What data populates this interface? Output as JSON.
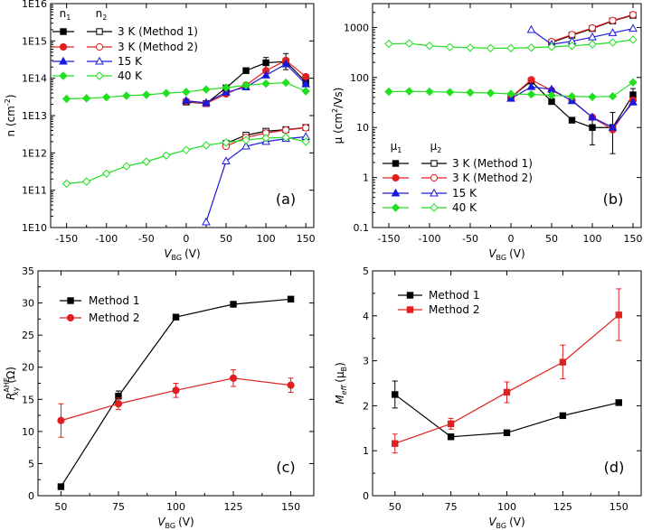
{
  "chart_data": [
    {
      "type": "line",
      "panel_label": "(a)",
      "xlabel": "V",
      "xlabel_sub": "BG",
      "xlabel_unit": "(V)",
      "ylabel": "n (cm",
      "ylabel_sup": "-2",
      "ylabel_end": ")",
      "y_scale": "log",
      "xlim": [
        -170,
        160
      ],
      "ylim": [
        10000000000.0,
        1e+16
      ],
      "x_ticks": [
        -150,
        -100,
        -50,
        0,
        50,
        100,
        150
      ],
      "x_tick_labels": [
        "-150",
        "-100",
        "-50",
        "0",
        "50",
        "100",
        "150"
      ],
      "y_ticks": [
        10000000000.0,
        100000000000.0,
        1000000000000.0,
        10000000000000.0,
        100000000000000.0,
        1000000000000000.0,
        1e+16
      ],
      "y_tick_labels": [
        "1E10",
        "1E11",
        "1E12",
        "1E13",
        "1E14",
        "1E15",
        "1E16"
      ],
      "legend_headers": [
        "n",
        "n"
      ],
      "legend_header_subs": [
        "1",
        "2"
      ],
      "legend_placement": "top-left",
      "legend_entries": [
        "3 K (Method 1)",
        "3 K (Method 2)",
        "15 K",
        "40 K"
      ],
      "series": [
        {
          "name": "n1 3 K (Method 1)",
          "color": "#000000",
          "marker": "square",
          "filled": true,
          "x": [
            0,
            25,
            50,
            75,
            100,
            125,
            150
          ],
          "y": [
            23000000000000.0,
            21000000000000.0,
            55000000000000.0,
            160000000000000.0,
            260000000000000.0,
            280000000000000.0,
            80000000000000.0
          ],
          "err_up": [
            null,
            null,
            null,
            null,
            360000000000000.0,
            460000000000000.0,
            null
          ],
          "err_down": [
            null,
            null,
            null,
            null,
            180000000000000.0,
            170000000000000.0,
            null
          ]
        },
        {
          "name": "n2 3 K (Method 1)",
          "color": "#000000",
          "marker": "square",
          "filled": false,
          "x": [
            50,
            75,
            100,
            125,
            150
          ],
          "y": [
            1800000000000.0,
            3000000000000.0,
            3800000000000.0,
            4200000000000.0,
            4800000000000.0
          ]
        },
        {
          "name": "n1 3 K (Method 2)",
          "color": "#e02020",
          "marker": "circle",
          "filled": true,
          "x": [
            0,
            25,
            50,
            75,
            100,
            125,
            150
          ],
          "y": [
            24000000000000.0,
            21000000000000.0,
            38000000000000.0,
            65000000000000.0,
            160000000000000.0,
            300000000000000.0,
            110000000000000.0
          ]
        },
        {
          "name": "n2 3 K (Method 2)",
          "color": "#e02020",
          "marker": "circle",
          "filled": false,
          "x": [
            50,
            75,
            100,
            125,
            150
          ],
          "y": [
            1500000000000.0,
            2600000000000.0,
            3400000000000.0,
            4100000000000.0,
            4700000000000.0
          ]
        },
        {
          "name": "n1 15 K",
          "color": "#1a1adc",
          "marker": "triangle",
          "filled": true,
          "x": [
            0,
            25,
            50,
            75,
            100,
            125,
            150
          ],
          "y": [
            25000000000000.0,
            22000000000000.0,
            42000000000000.0,
            58000000000000.0,
            120000000000000.0,
            240000000000000.0,
            70000000000000.0
          ]
        },
        {
          "name": "n2 15 K",
          "color": "#1a1adc",
          "marker": "triangle",
          "filled": false,
          "x": [
            25,
            50,
            75,
            100,
            125,
            150
          ],
          "y": [
            14000000000.0,
            600000000000.0,
            1500000000000.0,
            2000000000000.0,
            2400000000000.0,
            2700000000000.0
          ]
        },
        {
          "name": "n1 40 K",
          "color": "#20e020",
          "marker": "diamond",
          "filled": true,
          "x": [
            -150,
            -125,
            -100,
            -75,
            -50,
            -25,
            0,
            25,
            50,
            75,
            100,
            125,
            150
          ],
          "y": [
            28000000000000.0,
            29000000000000.0,
            31000000000000.0,
            34000000000000.0,
            36000000000000.0,
            40000000000000.0,
            43000000000000.0,
            50000000000000.0,
            56000000000000.0,
            65000000000000.0,
            72000000000000.0,
            76000000000000.0,
            45000000000000.0
          ]
        },
        {
          "name": "n2 40 K",
          "color": "#20e020",
          "marker": "diamond",
          "filled": false,
          "x": [
            -150,
            -125,
            -100,
            -75,
            -50,
            -25,
            0,
            25,
            50,
            75,
            100,
            125,
            150
          ],
          "y": [
            150000000000.0,
            170000000000.0,
            280000000000.0,
            440000000000.0,
            580000000000.0,
            850000000000.0,
            1200000000000.0,
            1600000000000.0,
            1900000000000.0,
            2200000000000.0,
            2500000000000.0,
            2600000000000.0,
            2000000000000.0
          ]
        }
      ]
    },
    {
      "type": "line",
      "panel_label": "(b)",
      "xlabel": "V",
      "xlabel_sub": "BG",
      "xlabel_unit": "(V)",
      "ylabel": "μ (cm",
      "ylabel_sup": "2",
      "ylabel_end": "/Vs)",
      "y_scale": "log",
      "xlim": [
        -170,
        160
      ],
      "ylim": [
        0.1,
        3000
      ],
      "x_ticks": [
        -150,
        -100,
        -50,
        0,
        50,
        100,
        150
      ],
      "x_tick_labels": [
        "-150",
        "-100",
        "-50",
        "0",
        "50",
        "100",
        "150"
      ],
      "y_ticks": [
        0.1,
        1,
        10,
        100,
        1000
      ],
      "y_tick_labels": [
        "0.1",
        "1",
        "10",
        "100",
        "1000"
      ],
      "legend_headers": [
        "μ",
        "μ"
      ],
      "legend_header_subs": [
        "1",
        "2"
      ],
      "legend_placement": "bottom-left",
      "legend_entries": [
        "3 K (Method 1)",
        "3 K (Method 2)",
        "15 K",
        "40 K"
      ],
      "series": [
        {
          "name": "μ1 3 K (Method 1)",
          "color": "#000000",
          "marker": "square",
          "filled": true,
          "x": [
            0,
            25,
            50,
            75,
            100,
            125,
            150
          ],
          "y": [
            40,
            85,
            33,
            14,
            10,
            10,
            45
          ],
          "err_up": [
            null,
            null,
            null,
            null,
            15,
            20,
            60
          ],
          "err_down": [
            null,
            null,
            null,
            null,
            4.5,
            3,
            33
          ]
        },
        {
          "name": "μ2 3 K (Method 1)",
          "color": "#000000",
          "marker": "square",
          "filled": false,
          "x": [
            50,
            75,
            100,
            125,
            150
          ],
          "y": [
            500,
            700,
            950,
            1350,
            1750
          ]
        },
        {
          "name": "μ1 3 K (Method 2)",
          "color": "#e02020",
          "marker": "circle",
          "filled": true,
          "x": [
            0,
            25,
            50,
            75,
            100,
            125,
            150
          ],
          "y": [
            40,
            90,
            55,
            35,
            16,
            9,
            35
          ]
        },
        {
          "name": "μ2 3 K (Method 2)",
          "color": "#e02020",
          "marker": "circle",
          "filled": false,
          "x": [
            50,
            75,
            100,
            125,
            150
          ],
          "y": [
            520,
            720,
            980,
            1380,
            1800
          ]
        },
        {
          "name": "μ1 15 K",
          "color": "#1a1adc",
          "marker": "triangle",
          "filled": true,
          "x": [
            0,
            25,
            50,
            75,
            100,
            125,
            150
          ],
          "y": [
            38,
            65,
            58,
            34,
            16,
            10,
            32
          ]
        },
        {
          "name": "μ2 15 K",
          "color": "#1a1adc",
          "marker": "triangle",
          "filled": false,
          "x": [
            25,
            50,
            75,
            100,
            125,
            150
          ],
          "y": [
            900,
            460,
            530,
            640,
            780,
            950
          ]
        },
        {
          "name": "μ1 40 K",
          "color": "#20e020",
          "marker": "diamond",
          "filled": true,
          "x": [
            -150,
            -125,
            -100,
            -75,
            -50,
            -25,
            0,
            25,
            50,
            75,
            100,
            125,
            150
          ],
          "y": [
            52,
            53,
            52,
            51,
            50,
            49,
            47,
            46,
            44,
            42,
            41,
            42,
            80
          ]
        },
        {
          "name": "μ2 40 K",
          "color": "#20e020",
          "marker": "diamond",
          "filled": false,
          "x": [
            -150,
            -125,
            -100,
            -75,
            -50,
            -25,
            0,
            25,
            50,
            75,
            100,
            125,
            150
          ],
          "y": [
            470,
            480,
            430,
            405,
            395,
            385,
            385,
            395,
            410,
            430,
            460,
            500,
            570
          ]
        }
      ]
    },
    {
      "type": "line",
      "panel_label": "(c)",
      "xlabel": "V",
      "xlabel_sub": "BG",
      "xlabel_unit": "(V)",
      "ylabel": "R",
      "ylabel_sub": "xy",
      "ylabel_sup": "AHE",
      "ylabel_end": "(Ω)",
      "y_scale": "linear",
      "xlim": [
        40,
        160
      ],
      "ylim": [
        0,
        35
      ],
      "x_ticks": [
        50,
        75,
        100,
        125,
        150
      ],
      "x_tick_labels": [
        "50",
        "75",
        "100",
        "125",
        "150"
      ],
      "y_ticks": [
        0,
        5,
        10,
        15,
        20,
        25,
        30,
        35
      ],
      "y_tick_labels": [
        "0",
        "5",
        "10",
        "15",
        "20",
        "25",
        "30",
        "35"
      ],
      "legend_placement": "top-left",
      "legend_entries": [
        "Method 1",
        "Method 2"
      ],
      "series": [
        {
          "name": "Method 1",
          "color": "#000000",
          "marker": "square",
          "filled": true,
          "x": [
            50,
            75,
            100,
            125,
            150
          ],
          "y": [
            1.4,
            15.5,
            27.8,
            29.8,
            30.6
          ],
          "err_up": [
            null,
            16.3,
            null,
            null,
            null
          ],
          "err_down": [
            null,
            14.7,
            null,
            null,
            null
          ]
        },
        {
          "name": "Method 2",
          "color": "#e02020",
          "marker": "circle",
          "filled": true,
          "x": [
            50,
            75,
            100,
            125,
            150
          ],
          "y": [
            11.7,
            14.3,
            16.4,
            18.3,
            17.2
          ],
          "err_up": [
            14.3,
            15.2,
            17.5,
            19.6,
            18.3
          ],
          "err_down": [
            9.1,
            13.4,
            15.3,
            17.0,
            16.1
          ]
        }
      ]
    },
    {
      "type": "line",
      "panel_label": "(d)",
      "xlabel": "V",
      "xlabel_sub": "BG",
      "xlabel_unit": "(V)",
      "ylabel": "M",
      "ylabel_sub": "eff",
      "ylabel_end": "(μ",
      "ylabel_end_sub": "B",
      "ylabel_close": ")",
      "y_scale": "linear",
      "xlim": [
        40,
        160
      ],
      "ylim": [
        0,
        5
      ],
      "x_ticks": [
        50,
        75,
        100,
        125,
        150
      ],
      "x_tick_labels": [
        "50",
        "75",
        "100",
        "125",
        "150"
      ],
      "y_ticks": [
        0,
        1,
        2,
        3,
        4,
        5
      ],
      "y_tick_labels": [
        "0",
        "1",
        "2",
        "3",
        "4",
        "5"
      ],
      "legend_placement": "top-left",
      "legend_entries": [
        "Method 1",
        "Method 2"
      ],
      "series": [
        {
          "name": "Method 1",
          "color": "#000000",
          "marker": "square",
          "filled": true,
          "x": [
            50,
            75,
            100,
            125,
            150
          ],
          "y": [
            2.25,
            1.31,
            1.4,
            1.78,
            2.07
          ],
          "err_up": [
            2.55,
            null,
            null,
            null,
            null
          ],
          "err_down": [
            1.95,
            null,
            null,
            null,
            null
          ]
        },
        {
          "name": "Method 2",
          "color": "#e02020",
          "marker": "square",
          "filled": true,
          "x": [
            50,
            75,
            100,
            125,
            150
          ],
          "y": [
            1.16,
            1.6,
            2.3,
            2.97,
            4.02
          ],
          "err_up": [
            1.37,
            1.72,
            2.53,
            3.35,
            4.6
          ],
          "err_down": [
            0.95,
            1.48,
            2.07,
            2.6,
            3.45
          ]
        }
      ]
    }
  ]
}
